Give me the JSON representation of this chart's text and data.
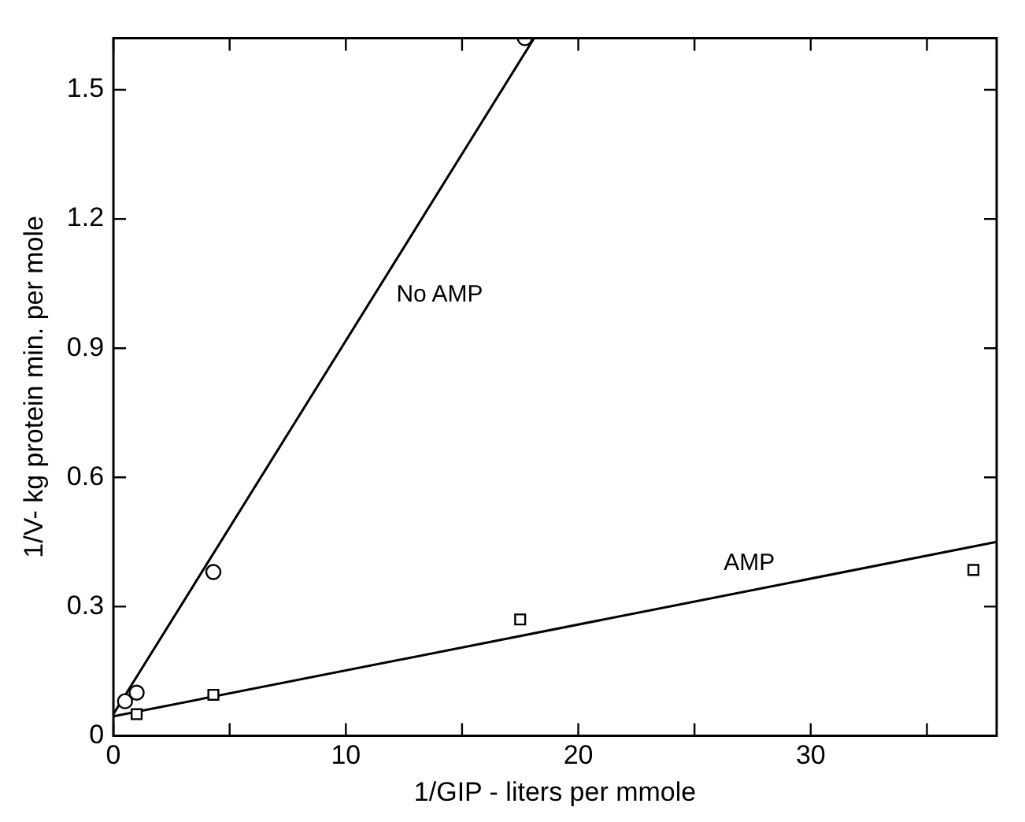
{
  "chart_data": {
    "type": "scatter",
    "xlabel": "1/GIP - liters per mmole",
    "ylabel": "1/V- kg protein min. per mole",
    "xlim": [
      0,
      38
    ],
    "xticks": [
      0,
      {
        "value": 5,
        "label": null
      },
      10,
      {
        "value": 15,
        "label": null
      },
      20,
      {
        "value": 25,
        "label": null
      },
      30,
      {
        "value": 35,
        "label": null
      }
    ],
    "ylim": [
      0,
      1.62
    ],
    "yticks": [
      0,
      0.3,
      0.6,
      0.9,
      1.2,
      1.5
    ],
    "grid": false,
    "legend": false,
    "series": [
      {
        "type": "scatter",
        "marker": "circle",
        "color": "#000000",
        "x": [
          0.5,
          1,
          4.3,
          17.7
        ],
        "values": [
          0.08,
          0.1,
          0.38,
          1.62
        ]
      },
      {
        "type": "scatter",
        "marker": "square",
        "color": "#000000",
        "x": [
          1,
          4.3,
          17.5,
          37
        ],
        "values": [
          0.05,
          0.095,
          0.27,
          0.385
        ]
      },
      {
        "type": "line",
        "name": "No AMP",
        "marker": "none",
        "color": "#000000",
        "x": [
          0,
          18.1
        ],
        "values": [
          0.05,
          1.62
        ]
      },
      {
        "type": "line",
        "name": "AMP",
        "marker": "none",
        "color": "#000000",
        "x": [
          0,
          38
        ],
        "values": [
          0.045,
          0.45
        ]
      }
    ]
  }
}
